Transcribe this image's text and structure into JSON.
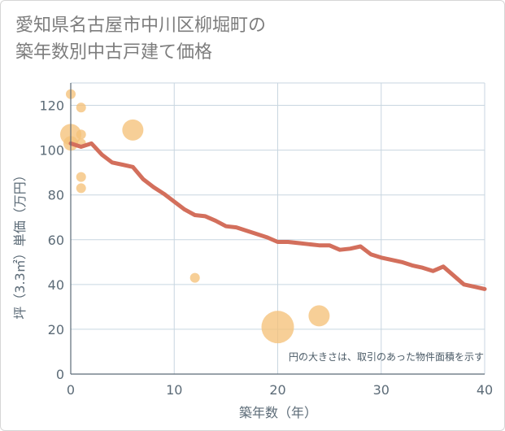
{
  "title_lines": [
    "愛知県名古屋市中川区柳堀町の",
    "築年数別中古戸建て価格"
  ],
  "chart_data": {
    "type": "scatter+line",
    "xlabel": "築年数（年）",
    "ylabel": "坪（3.3㎡）単価（万円）",
    "xlim": [
      0,
      40
    ],
    "ylim": [
      0,
      130
    ],
    "xticks": [
      0,
      10,
      20,
      30,
      40
    ],
    "yticks": [
      0,
      20,
      40,
      60,
      80,
      100,
      120
    ],
    "grid": true,
    "note": "円の大きさは、取引のあった物件面積を示す",
    "bubbles": [
      {
        "x": 0,
        "y": 125,
        "size": "small"
      },
      {
        "x": 0,
        "y": 107,
        "size": "large"
      },
      {
        "x": 0,
        "y": 103,
        "size": "medium"
      },
      {
        "x": 1,
        "y": 119,
        "size": "small"
      },
      {
        "x": 1,
        "y": 107,
        "size": "small"
      },
      {
        "x": 1,
        "y": 103,
        "size": "small"
      },
      {
        "x": 1,
        "y": 88,
        "size": "small"
      },
      {
        "x": 1,
        "y": 83,
        "size": "small"
      },
      {
        "x": 6,
        "y": 109,
        "size": "large"
      },
      {
        "x": 12,
        "y": 43,
        "size": "small"
      },
      {
        "x": 20,
        "y": 21,
        "size": "xlarge"
      },
      {
        "x": 24,
        "y": 26,
        "size": "large"
      }
    ],
    "trend": {
      "x": [
        0,
        1,
        2,
        3,
        4,
        5,
        6,
        7,
        8,
        9,
        10,
        11,
        12,
        13,
        14,
        15,
        16,
        17,
        18,
        19,
        20,
        21,
        22,
        23,
        24,
        25,
        26,
        27,
        28,
        29,
        30,
        31,
        32,
        33,
        34,
        35,
        36,
        37,
        38,
        39,
        40
      ],
      "y": [
        103,
        101.5,
        103,
        98,
        94.5,
        93.5,
        92.5,
        87,
        83.5,
        80.5,
        77,
        73.5,
        71,
        70.5,
        68.5,
        66,
        65.5,
        64,
        62.5,
        61,
        59,
        59,
        58.5,
        58,
        57.5,
        57.5,
        55.5,
        56,
        57,
        53.5,
        52,
        51,
        50,
        48.5,
        47.5,
        46,
        48,
        44,
        40,
        39,
        38
      ]
    },
    "colors": {
      "bubble": "#f5c27a",
      "trend": "#d36f5c",
      "grid": "#c8d6e0",
      "axis": "#5c6b77"
    }
  }
}
